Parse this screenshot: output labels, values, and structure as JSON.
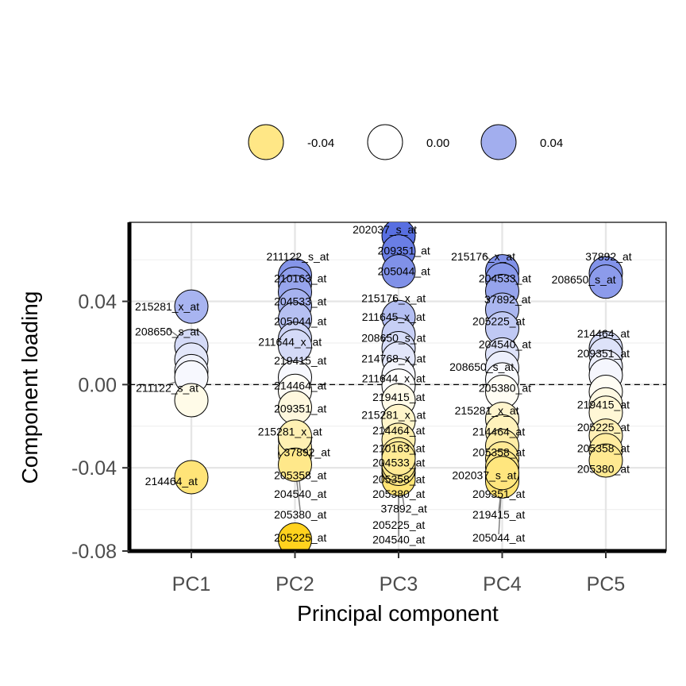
{
  "chart_data": {
    "type": "scatter",
    "xlabel": "Principal component",
    "ylabel": "Component loading",
    "categories": [
      "PC1",
      "PC2",
      "PC3",
      "PC4",
      "PC5"
    ],
    "ylim": [
      -0.08,
      0.078
    ],
    "yticks": [
      -0.08,
      -0.04,
      0.0,
      0.04
    ],
    "ytick_labels": [
      "-0.08",
      "-0.04",
      "0.00",
      "0.04"
    ],
    "reference_line": 0.0,
    "grid": true,
    "legend_position": "top",
    "legend": [
      {
        "label": "-0.04",
        "value": -0.04
      },
      {
        "label": "0.00",
        "value": 0.0
      },
      {
        "label": "0.04",
        "value": 0.04
      }
    ],
    "color_scale": {
      "low": "#FFD21C",
      "mid": "#FFFFFF",
      "high": "#5068E0"
    },
    "points": [
      {
        "pc": "PC1",
        "y": 0.0375,
        "label": "215281_x_at",
        "ly": 0.0375,
        "lx": -0.62
      },
      {
        "pc": "PC1",
        "y": 0.0185,
        "label": "208650_s_at",
        "ly": 0.0255,
        "lx": -0.62
      },
      {
        "pc": "PC1",
        "y": 0.012,
        "label": "",
        "ly": null,
        "lx": null
      },
      {
        "pc": "PC1",
        "y": 0.0065,
        "label": "",
        "ly": null,
        "lx": null
      },
      {
        "pc": "PC1",
        "y": 0.0035,
        "label": "211122_s_at",
        "ly": -0.0015,
        "lx": -0.62
      },
      {
        "pc": "PC1",
        "y": -0.0075,
        "label": "",
        "ly": null,
        "lx": null
      },
      {
        "pc": "PC1",
        "y": -0.0445,
        "label": "214464_at",
        "ly": -0.0465,
        "lx": -0.54
      },
      {
        "pc": "PC2",
        "y": 0.0525,
        "label": "211122_s_at",
        "ly": 0.0615,
        "lx": -0.1
      },
      {
        "pc": "PC2",
        "y": 0.0485,
        "label": "210163_at",
        "ly": 0.051,
        "lx": -0.05
      },
      {
        "pc": "PC2",
        "y": 0.0445,
        "label": "",
        "ly": null,
        "lx": null
      },
      {
        "pc": "PC2",
        "y": 0.038,
        "label": "204533_at",
        "ly": 0.04,
        "lx": -0.05
      },
      {
        "pc": "PC2",
        "y": 0.0315,
        "label": "205044_at",
        "ly": 0.0305,
        "lx": -0.05
      },
      {
        "pc": "PC2",
        "y": 0.022,
        "label": "211644_x_at",
        "ly": 0.0205,
        "lx": -0.25
      },
      {
        "pc": "PC2",
        "y": 0.0185,
        "label": "219415_at",
        "ly": 0.0115,
        "lx": -0.05
      },
      {
        "pc": "PC2",
        "y": 0.0035,
        "label": "214464_at",
        "ly": -0.0005,
        "lx": -0.05
      },
      {
        "pc": "PC2",
        "y": -0.003,
        "label": "",
        "ly": null,
        "lx": null
      },
      {
        "pc": "PC2",
        "y": -0.011,
        "label": "209351_at",
        "ly": -0.0115,
        "lx": -0.05
      },
      {
        "pc": "PC2",
        "y": -0.026,
        "label": "215281_x_at",
        "ly": -0.0225,
        "lx": -0.25
      },
      {
        "pc": "PC2",
        "y": -0.0335,
        "label": "37892_at",
        "ly": -0.0325,
        "lx": 0.08
      },
      {
        "pc": "PC2",
        "y": -0.0305,
        "label": "205358_at",
        "ly": -0.0435,
        "lx": -0.05
      },
      {
        "pc": "PC2",
        "y": -0.025,
        "label": "204540_at",
        "ly": -0.0525,
        "lx": -0.05
      },
      {
        "pc": "PC2",
        "y": -0.0385,
        "label": "205380_at",
        "ly": -0.0625,
        "lx": -0.05
      },
      {
        "pc": "PC2",
        "y": -0.0745,
        "label": "205225_at",
        "ly": -0.0735,
        "lx": -0.05
      },
      {
        "pc": "PC3",
        "y": 0.0715,
        "label": "202037_s_at",
        "ly": 0.0745,
        "lx": -0.42
      },
      {
        "pc": "PC3",
        "y": 0.064,
        "label": "209351_at",
        "ly": 0.0645,
        "lx": -0.05
      },
      {
        "pc": "PC3",
        "y": 0.0545,
        "label": "205044_at",
        "ly": 0.0545,
        "lx": -0.05
      },
      {
        "pc": "PC3",
        "y": 0.0325,
        "label": "215176_x_at",
        "ly": 0.0415,
        "lx": -0.25
      },
      {
        "pc": "PC3",
        "y": 0.024,
        "label": "211645_x_at",
        "ly": 0.0325,
        "lx": -0.25
      },
      {
        "pc": "PC3",
        "y": 0.0175,
        "label": "208650_s_at",
        "ly": 0.0225,
        "lx": -0.25
      },
      {
        "pc": "PC3",
        "y": 0.0125,
        "label": "214768_x_at",
        "ly": 0.0125,
        "lx": -0.25
      },
      {
        "pc": "PC3",
        "y": 0.0045,
        "label": "211644_x_at",
        "ly": 0.003,
        "lx": -0.25
      },
      {
        "pc": "PC3",
        "y": -0.0005,
        "label": "219415_at",
        "ly": -0.006,
        "lx": -0.15
      },
      {
        "pc": "PC3",
        "y": -0.0075,
        "label": "215281_x_at",
        "ly": -0.0145,
        "lx": -0.25
      },
      {
        "pc": "PC3",
        "y": -0.0175,
        "label": "214464_at",
        "ly": -0.022,
        "lx": -0.15
      },
      {
        "pc": "PC3",
        "y": -0.0265,
        "label": "210163_at",
        "ly": -0.0305,
        "lx": -0.15
      },
      {
        "pc": "PC3",
        "y": -0.0335,
        "label": "204533_at",
        "ly": -0.0375,
        "lx": -0.15
      },
      {
        "pc": "PC3",
        "y": -0.0425,
        "label": "205358_at",
        "ly": -0.0455,
        "lx": -0.15
      },
      {
        "pc": "PC3",
        "y": -0.0455,
        "label": "205380_at",
        "ly": -0.0525,
        "lx": -0.15
      },
      {
        "pc": "PC3",
        "y": -0.0405,
        "label": "37892_at",
        "ly": -0.0595,
        "lx": -0.05
      },
      {
        "pc": "PC3",
        "y": -0.0385,
        "label": "205225_at",
        "ly": -0.0675,
        "lx": -0.15
      },
      {
        "pc": "PC3",
        "y": -0.0355,
        "label": "204540_at",
        "ly": -0.0745,
        "lx": -0.15
      },
      {
        "pc": "PC4",
        "y": 0.0545,
        "label": "215176_x_at",
        "ly": 0.0615,
        "lx": -0.52
      },
      {
        "pc": "PC4",
        "y": 0.0505,
        "label": "204533_at",
        "ly": 0.051,
        "lx": -0.1
      },
      {
        "pc": "PC4",
        "y": 0.045,
        "label": "",
        "ly": null,
        "lx": null
      },
      {
        "pc": "PC4",
        "y": 0.036,
        "label": "37892_at",
        "ly": 0.041,
        "lx": -0.05
      },
      {
        "pc": "PC4",
        "y": 0.027,
        "label": "205225_at",
        "ly": 0.0305,
        "lx": -0.22
      },
      {
        "pc": "PC4",
        "y": 0.0145,
        "label": "204540_at",
        "ly": 0.0195,
        "lx": -0.1
      },
      {
        "pc": "PC4",
        "y": 0.008,
        "label": "208650_s_at",
        "ly": 0.0085,
        "lx": -0.55
      },
      {
        "pc": "PC4",
        "y": 0.0025,
        "label": "",
        "ly": null,
        "lx": null
      },
      {
        "pc": "PC4",
        "y": -0.0035,
        "label": "205380_at",
        "ly": -0.0015,
        "lx": -0.1
      },
      {
        "pc": "PC4",
        "y": -0.0165,
        "label": "215281_x_at",
        "ly": -0.0125,
        "lx": -0.45
      },
      {
        "pc": "PC4",
        "y": -0.0225,
        "label": "214464_at",
        "ly": -0.0225,
        "lx": -0.22
      },
      {
        "pc": "PC4",
        "y": -0.0295,
        "label": "205358_at",
        "ly": -0.0325,
        "lx": -0.22
      },
      {
        "pc": "PC4",
        "y": -0.0355,
        "label": "",
        "ly": null,
        "lx": null
      },
      {
        "pc": "PC4",
        "y": -0.0395,
        "label": "202037_s_at",
        "ly": -0.0435,
        "lx": -0.5
      },
      {
        "pc": "PC4",
        "y": -0.0445,
        "label": "209351_at",
        "ly": -0.0525,
        "lx": -0.22
      },
      {
        "pc": "PC4",
        "y": -0.0465,
        "label": "219415_at",
        "ly": -0.0625,
        "lx": -0.22
      },
      {
        "pc": "PC4",
        "y": -0.0425,
        "label": "205044_at",
        "ly": -0.0735,
        "lx": -0.22
      },
      {
        "pc": "PC5",
        "y": 0.0535,
        "label": "37892_at",
        "ly": 0.0615,
        "lx": -0.1
      },
      {
        "pc": "PC5",
        "y": 0.0495,
        "label": "208650_s_at",
        "ly": 0.0505,
        "lx": -0.58
      },
      {
        "pc": "PC5",
        "y": 0.0175,
        "label": "214464_at",
        "ly": 0.0245,
        "lx": -0.2
      },
      {
        "pc": "PC5",
        "y": 0.0145,
        "label": "209351_at",
        "ly": 0.015,
        "lx": -0.2
      },
      {
        "pc": "PC5",
        "y": 0.0085,
        "label": "",
        "ly": null,
        "lx": null
      },
      {
        "pc": "PC5",
        "y": 0.0045,
        "label": "",
        "ly": null,
        "lx": null
      },
      {
        "pc": "PC5",
        "y": -0.0035,
        "label": "",
        "ly": null,
        "lx": null
      },
      {
        "pc": "PC5",
        "y": -0.0095,
        "label": "219415_at",
        "ly": -0.0095,
        "lx": -0.2
      },
      {
        "pc": "PC5",
        "y": -0.0135,
        "label": "",
        "ly": null,
        "lx": null
      },
      {
        "pc": "PC5",
        "y": -0.0245,
        "label": "205225_at",
        "ly": -0.0205,
        "lx": -0.2
      },
      {
        "pc": "PC5",
        "y": -0.0315,
        "label": "205358_at",
        "ly": -0.0305,
        "lx": -0.2
      },
      {
        "pc": "PC5",
        "y": -0.0365,
        "label": "205380_at",
        "ly": -0.0405,
        "lx": -0.2
      }
    ]
  }
}
